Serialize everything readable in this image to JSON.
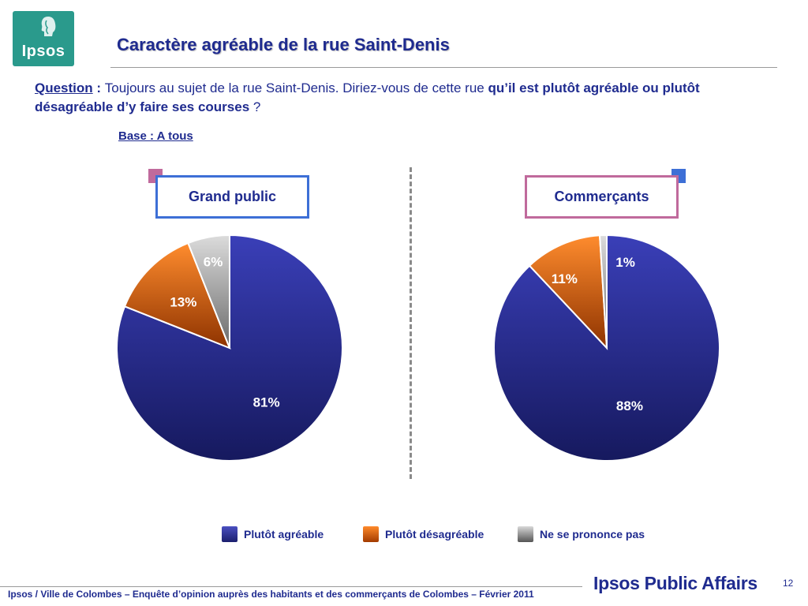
{
  "logo": {
    "text": "Ipsos",
    "color": "#2a9a8c"
  },
  "title": "Caractère agréable de la rue Saint-Denis",
  "question": {
    "label": "Question",
    "colon": " : ",
    "text_part1": "Toujours au sujet de la rue Saint-Denis. Diriez-vous de cette rue ",
    "text_bold": "qu’il est plutôt agréable ou plutôt désagréable d’y faire ses courses",
    "text_part2": " ?"
  },
  "base": "Base : A tous",
  "panels": {
    "left": {
      "label": "Grand public",
      "border_color": "#3d6fd6",
      "marker_color": "#c06a9c"
    },
    "right": {
      "label": "Commerçants",
      "border_color": "#c06a9c",
      "marker_color": "#3d6fd6"
    }
  },
  "chart_data": [
    {
      "type": "pie",
      "title": "Grand public",
      "categories": [
        "Plutôt agréable",
        "Plutôt désagréable",
        "Ne se prononce pas"
      ],
      "values": [
        81,
        13,
        6
      ],
      "labels": [
        "81%",
        "13%",
        "6%"
      ]
    },
    {
      "type": "pie",
      "title": "Commerçants",
      "categories": [
        "Plutôt agréable",
        "Plutôt désagréable",
        "Ne se prononce pas"
      ],
      "values": [
        88,
        11,
        1
      ],
      "labels": [
        "88%",
        "11%",
        "1%"
      ]
    }
  ],
  "series_colors": {
    "Plutôt agréable": "#2e3192",
    "Plutôt désagréable": "#e55a00",
    "Ne se prononce pas": "#8c8c8c"
  },
  "legend": {
    "items": [
      {
        "label": "Plutôt agréable",
        "color": "#2e3192"
      },
      {
        "label": "Plutôt désagréable",
        "color": "#e55a00"
      },
      {
        "label": "Ne se prononce pas",
        "color": "#8c8c8c"
      }
    ]
  },
  "footer": "Ipsos / Ville de Colombes – Enquête d’opinion auprès des habitants et des commerçants de Colombes – Février 2011",
  "brand": "Ipsos Public Affairs",
  "page_number": "12"
}
